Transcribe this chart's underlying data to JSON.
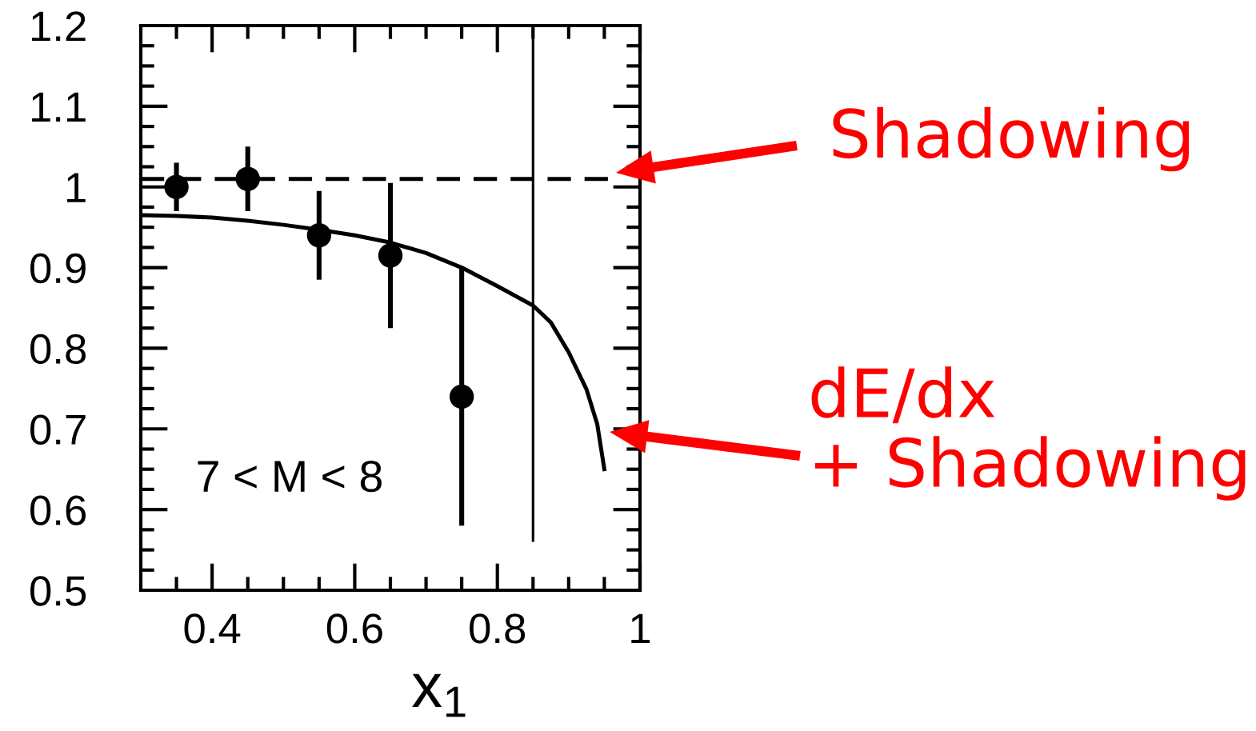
{
  "chart_data": {
    "type": "scatter",
    "xlabel": "x$_{1}$",
    "annotations": [
      "7 < M < 8",
      "Shadowing",
      "dE/dx\n+ Shadowing"
    ],
    "xlim": [
      0.3,
      1
    ],
    "ylim": [
      0.5,
      1.2
    ],
    "xticks": [
      {
        "value": 0.35,
        "label": null
      },
      0.4,
      {
        "value": 0.45,
        "label": null
      },
      {
        "value": 0.5,
        "label": null
      },
      {
        "value": 0.55,
        "label": null
      },
      0.6,
      {
        "value": 0.65,
        "label": null
      },
      {
        "value": 0.7,
        "label": null
      },
      {
        "value": 0.75,
        "label": null
      },
      0.8,
      {
        "value": 0.85,
        "label": null
      },
      {
        "value": 0.9,
        "label": null
      },
      {
        "value": 0.95,
        "label": null
      },
      1
    ],
    "yticks": [
      0.5,
      {
        "value": 0.525,
        "label": null
      },
      {
        "value": 0.55,
        "label": null
      },
      {
        "value": 0.575,
        "label": null
      },
      0.6,
      {
        "value": 0.625,
        "label": null
      },
      {
        "value": 0.65,
        "label": null
      },
      {
        "value": 0.675,
        "label": null
      },
      0.7,
      {
        "value": 0.725,
        "label": null
      },
      {
        "value": 0.75,
        "label": null
      },
      {
        "value": 0.775,
        "label": null
      },
      0.8,
      {
        "value": 0.825,
        "label": null
      },
      {
        "value": 0.85,
        "label": null
      },
      {
        "value": 0.875,
        "label": null
      },
      0.9,
      {
        "value": 0.925,
        "label": null
      },
      {
        "value": 0.95,
        "label": null
      },
      {
        "value": 0.975,
        "label": null
      },
      1,
      {
        "value": 1.025,
        "label": null
      },
      {
        "value": 1.05,
        "label": null
      },
      {
        "value": 1.075,
        "label": null
      },
      1.1,
      {
        "value": 1.125,
        "label": null
      },
      {
        "value": 1.15,
        "label": null
      },
      {
        "value": 1.175,
        "label": null
      },
      1.2
    ],
    "series": [
      {
        "color": "#000000",
        "marker": "circle",
        "x": [
          0.35,
          0.45,
          0.55,
          0.65,
          0.75
        ],
        "values": [
          1.0,
          1.01,
          0.94,
          0.915,
          0.74
        ],
        "errors": [
          0.03,
          0.04,
          0.055,
          0.09,
          0.16
        ]
      },
      {
        "type": "bar",
        "color": "#000000",
        "x": [
          0.85
        ],
        "base": [
          0.56
        ],
        "values": [
          0.64
        ]
      },
      {
        "type": "line",
        "color": "#000000",
        "line_style": "dashed",
        "x": [
          0.3,
          0.955
        ],
        "values": [
          1.01,
          1.01
        ]
      },
      {
        "type": "line",
        "color": "#000000",
        "x": [
          0.3,
          0.35,
          0.4,
          0.45,
          0.5,
          0.55,
          0.6,
          0.65,
          0.7,
          0.75,
          0.8,
          0.85,
          0.875,
          0.9,
          0.925,
          0.94,
          0.95
        ],
        "values": [
          0.965,
          0.964,
          0.962,
          0.958,
          0.953,
          0.947,
          0.94,
          0.931,
          0.918,
          0.9,
          0.877,
          0.853,
          0.832,
          0.795,
          0.749,
          0.706,
          0.65
        ]
      }
    ]
  }
}
